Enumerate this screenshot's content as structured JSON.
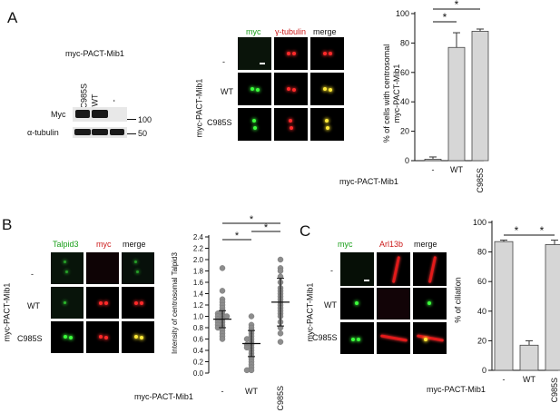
{
  "panels": {
    "A": {
      "label": "A",
      "blot": {
        "title": "myc-PACT-Mib1",
        "lanes": [
          "C985S",
          "WT",
          "-"
        ],
        "rows": [
          "Myc",
          "α-tubulin"
        ],
        "markers": [
          "100",
          "50"
        ]
      },
      "images": {
        "columns": [
          {
            "text": "myc",
            "color": "#1aa01a"
          },
          {
            "text": "γ-tubulin",
            "color": "#cc1a1a"
          },
          {
            "text": "merge",
            "color": "#111111"
          }
        ],
        "row_title": "myc-PACT-Mib1",
        "rows": [
          "-",
          "WT",
          "C985S"
        ]
      },
      "chart": {
        "ylabel_1": "% of cells with centrosomal",
        "ylabel_2": "myc-PACT-Mib1",
        "group_label": "myc-PACT-Mib1",
        "star": "*"
      }
    },
    "B": {
      "label": "B",
      "images": {
        "columns": [
          {
            "text": "Talpid3",
            "color": "#1aa01a"
          },
          {
            "text": "myc",
            "color": "#cc1a1a"
          },
          {
            "text": "merge",
            "color": "#111111"
          }
        ],
        "row_title": "myc-PACT-Mib1",
        "rows": [
          "-",
          "WT",
          "C985S"
        ]
      },
      "chart": {
        "ylabel": "Intensity of centrosomal Talpid3",
        "group_label": "myc-PACT-Mib1",
        "star": "*"
      }
    },
    "C": {
      "label": "C",
      "images": {
        "columns": [
          {
            "text": "myc",
            "color": "#1aa01a"
          },
          {
            "text": "Arl13b",
            "color": "#cc1a1a"
          },
          {
            "text": "merge",
            "color": "#111111"
          }
        ],
        "row_title": "myc-PACT-Mib1",
        "rows": [
          "-",
          "WT",
          "C985S"
        ]
      },
      "chart": {
        "ylabel": "% of ciliation",
        "group_label": "myc-PACT-Mib1",
        "star": "*"
      }
    }
  },
  "chart_data": [
    {
      "id": "A",
      "type": "bar",
      "categories": [
        "-",
        "WT",
        "C985S"
      ],
      "values": [
        1,
        77,
        88
      ],
      "errors": [
        1.5,
        10,
        1.5
      ],
      "ylim": [
        0,
        100
      ],
      "yticks": [
        0,
        20,
        40,
        60,
        80,
        100
      ],
      "ylabel": "% of cells with centrosomal myc-PACT-Mib1",
      "xlabel": "myc-PACT-Mib1",
      "significance": [
        [
          "-",
          "WT",
          "*"
        ],
        [
          "-",
          "C985S",
          "*"
        ]
      ]
    },
    {
      "id": "B",
      "type": "scatter",
      "categories": [
        "-",
        "WT",
        "C985S"
      ],
      "means": [
        0.95,
        0.52,
        1.25
      ],
      "sd": [
        0.15,
        0.23,
        0.42
      ],
      "points": [
        [
          1.85,
          1.45,
          1.3,
          1.25,
          1.2,
          1.15,
          1.1,
          1.05,
          1.05,
          1.0,
          1.0,
          1.0,
          0.95,
          0.95,
          0.9,
          0.9,
          0.85,
          0.85,
          0.8,
          0.8,
          0.75,
          0.7,
          0.65,
          0.6
        ],
        [
          1.0,
          0.85,
          0.8,
          0.75,
          0.7,
          0.65,
          0.6,
          0.6,
          0.55,
          0.5,
          0.5,
          0.45,
          0.45,
          0.4,
          0.35,
          0.3,
          0.25,
          0.2,
          0.15,
          0.1,
          0.05,
          0.05
        ],
        [
          2.0,
          1.85,
          1.8,
          1.7,
          1.6,
          1.5,
          1.45,
          1.4,
          1.35,
          1.3,
          1.25,
          1.2,
          1.15,
          1.1,
          1.05,
          1.0,
          0.9,
          0.8,
          0.7,
          0.55
        ]
      ],
      "ylim": [
        0,
        2.4
      ],
      "yticks": [
        0,
        0.2,
        0.4,
        0.6,
        0.8,
        1.0,
        1.2,
        1.4,
        1.6,
        1.8,
        2.0,
        2.2,
        2.4
      ],
      "ylabel": "Intensity of centrosomal Talpid3",
      "xlabel": "myc-PACT-Mib1",
      "significance": [
        [
          "-",
          "WT",
          "*"
        ],
        [
          "-",
          "C985S",
          "*"
        ],
        [
          "WT",
          "C985S",
          "*"
        ]
      ]
    },
    {
      "id": "C",
      "type": "bar",
      "categories": [
        "-",
        "WT",
        "C985S"
      ],
      "values": [
        87,
        17,
        85
      ],
      "errors": [
        1,
        3,
        3
      ],
      "ylim": [
        0,
        100
      ],
      "yticks": [
        0,
        20,
        40,
        60,
        80,
        100
      ],
      "ylabel": "% of ciliation",
      "xlabel": "myc-PACT-Mib1",
      "significance": [
        [
          "-",
          "WT",
          "*"
        ],
        [
          "WT",
          "C985S",
          "*"
        ]
      ]
    }
  ]
}
